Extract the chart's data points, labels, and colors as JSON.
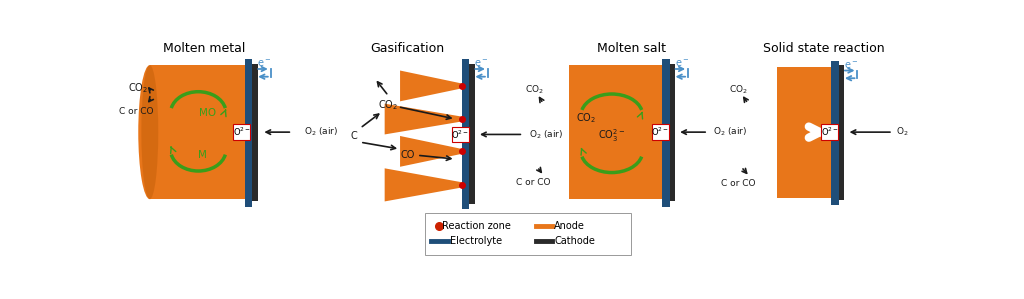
{
  "background_color": "#ffffff",
  "panel_titles": [
    "Molten metal",
    "Gasification",
    "Molten salt",
    "Solid state reaction"
  ],
  "orange_color": "#E8761A",
  "dark_blue_color": "#1F4E79",
  "black_color": "#1a1a1a",
  "green_color": "#3A9E1A",
  "arrow_blue": "#4A90C8",
  "red_dot_color": "#CC2200",
  "cathode_color": "#2a2a2a"
}
